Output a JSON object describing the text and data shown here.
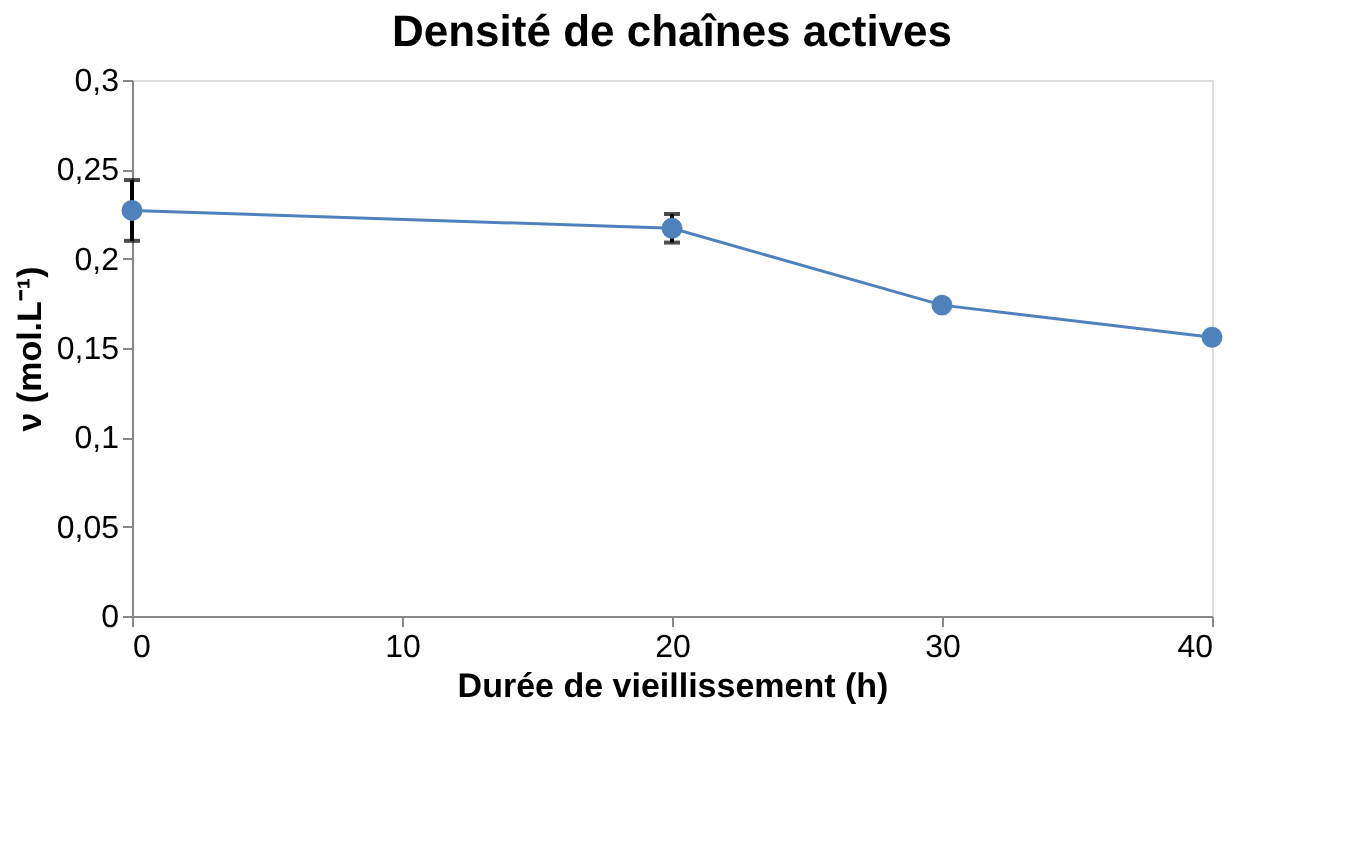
{
  "chart_data": {
    "type": "line",
    "title": "Densité de chaînes actives",
    "xlabel": "Durée de vieillissement (h)",
    "ylabel": "ν (mol.L⁻¹)",
    "x": [
      0,
      20,
      30,
      40
    ],
    "series": [
      {
        "color": "#4f81bd",
        "values": [
          0.227,
          0.217,
          0.174,
          0.156
        ],
        "errors": [
          0.017,
          0.008,
          null,
          null
        ]
      }
    ],
    "xlim": [
      0,
      40
    ],
    "xticks": [
      0,
      10,
      20,
      30,
      40
    ],
    "ylim": [
      0,
      0.3
    ],
    "yticks": [
      {
        "value": 0,
        "label": "0"
      },
      {
        "value": 0.05,
        "label": "0,05"
      },
      {
        "value": 0.1,
        "label": "0,1"
      },
      {
        "value": 0.15,
        "label": "0,15"
      },
      {
        "value": 0.2,
        "label": "0,2"
      },
      {
        "value": 0.25,
        "label": "0,25"
      },
      {
        "value": 0.3,
        "label": "0,3"
      }
    ],
    "marker": "circle"
  }
}
